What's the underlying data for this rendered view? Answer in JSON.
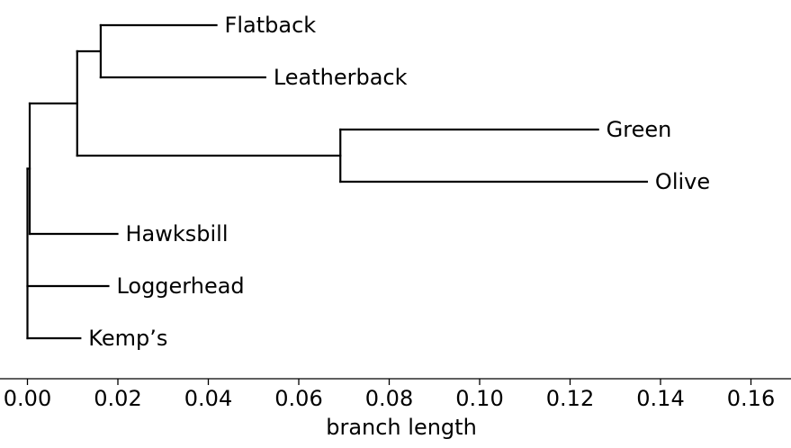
{
  "chart_data": {
    "type": "dendrogram",
    "xlabel": "branch length",
    "xlim": [
      0,
      0.168
    ],
    "xticks": [
      "0.00",
      "0.02",
      "0.04",
      "0.06",
      "0.08",
      "0.10",
      "0.12",
      "0.14",
      "0.16"
    ],
    "tree": {
      "id": "root",
      "x": 0,
      "children": [
        {
          "id": "n1",
          "x": 0.0005,
          "children": [
            {
              "id": "n2",
              "x": 0.011,
              "children": [
                {
                  "id": "n3",
                  "x": 0.0162,
                  "children": [
                    {
                      "leaf": "Flatback",
                      "x": 0.0418
                    },
                    {
                      "leaf": "Leatherback",
                      "x": 0.0526
                    }
                  ]
                },
                {
                  "id": "n4",
                  "x": 0.0692,
                  "children": [
                    {
                      "leaf": "Green",
                      "x": 0.1262
                    },
                    {
                      "leaf": "Olive",
                      "x": 0.137
                    }
                  ]
                }
              ]
            },
            {
              "leaf": "Hawksbill",
              "x": 0.0199
            }
          ]
        },
        {
          "leaf": "Loggerhead",
          "x": 0.0179
        },
        {
          "leaf": "Kemp’s",
          "x": 0.0117
        }
      ]
    }
  }
}
